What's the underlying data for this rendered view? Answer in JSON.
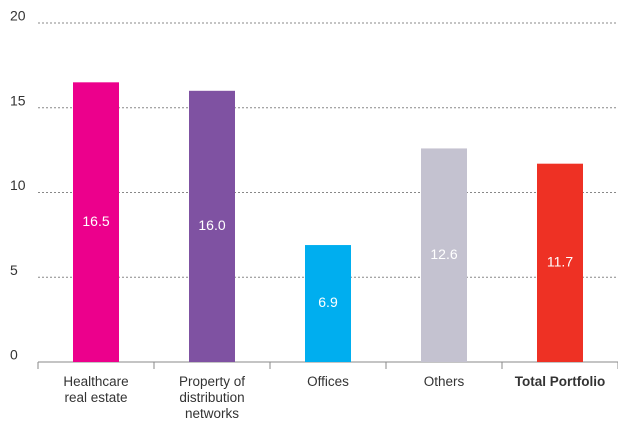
{
  "chart_data": {
    "type": "bar",
    "categories": [
      "Healthcare real estate",
      "Property of distribution networks",
      "Offices",
      "Others",
      "Total Portfolio"
    ],
    "values": [
      16.5,
      16.0,
      6.9,
      12.6,
      11.7
    ],
    "value_labels": [
      "16.5",
      "16.0",
      "6.9",
      "12.6",
      "11.7"
    ],
    "colors": [
      "#ec008c",
      "#7f52a2",
      "#00aeef",
      "#c4c2d0",
      "#ee3124"
    ],
    "ylim": [
      0,
      20
    ],
    "yticks": [
      0,
      5,
      10,
      15,
      20
    ],
    "grid": true,
    "bold_last_category": true
  }
}
